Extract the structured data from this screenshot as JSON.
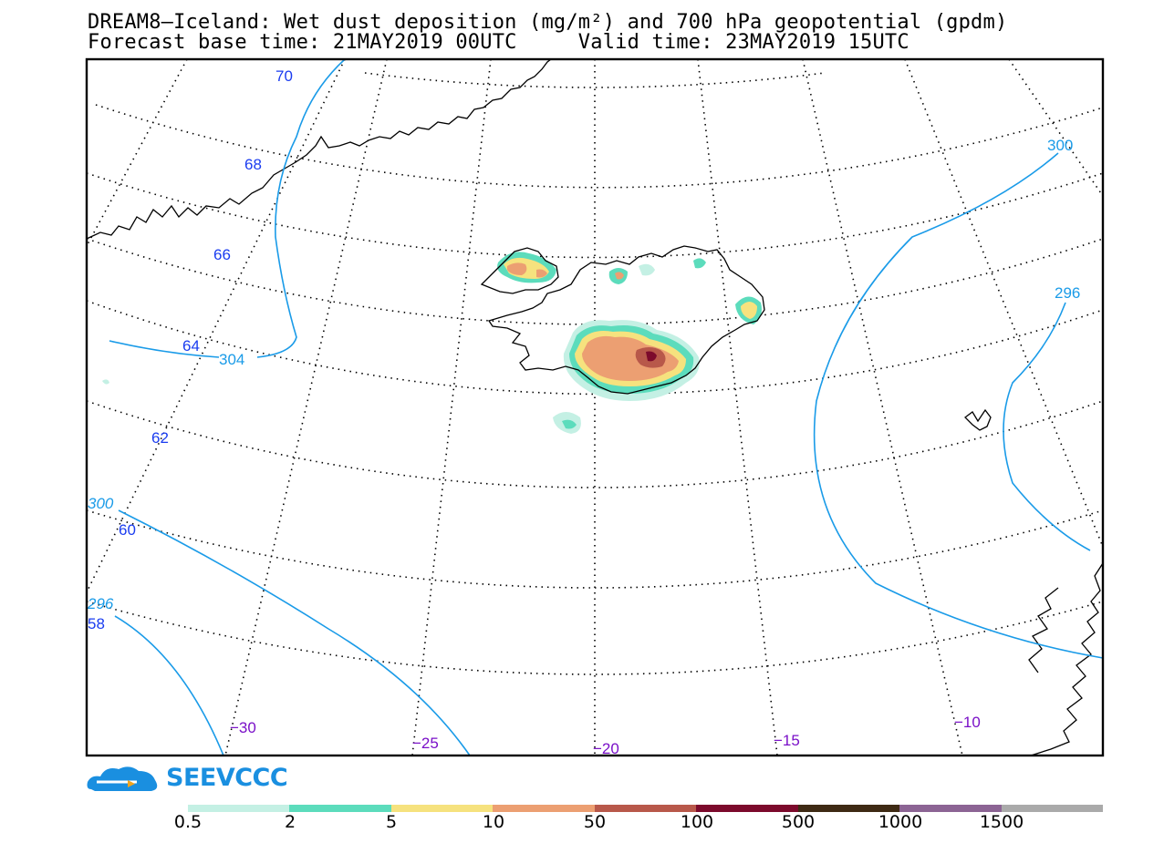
{
  "header": {
    "title_line1": "DREAM8—Iceland: Wet dust deposition (mg/m²) and 700 hPa geopotential (gpdm)",
    "title_line2": "Forecast base time: 21MAY2019 00UTC     Valid time: 23MAY2019 15UTC"
  },
  "map": {
    "latitude_labels": [
      "70",
      "68",
      "66",
      "64",
      "62",
      "60",
      "58"
    ],
    "longitude_labels": [
      "−30",
      "−25",
      "−20",
      "−15",
      "−10"
    ],
    "contour_labels": [
      "304",
      "300",
      "296",
      "300",
      "296"
    ],
    "colors": {
      "latlon_label": "#1a3cf0",
      "lon_label": "#7a10c8",
      "contour": "#1a9be8"
    }
  },
  "brand": {
    "name": "SEEVCCC",
    "color": "#1a8fe0",
    "icon": "cloud-logo-icon"
  },
  "legend": {
    "ticks": [
      "0.5",
      "2",
      "5",
      "10",
      "50",
      "100",
      "500",
      "1000",
      "1500"
    ],
    "colors": [
      "#c4f0e4",
      "#5cdcbc",
      "#f6e27e",
      "#ec9f72",
      "#b8584a",
      "#7c0a2c",
      "#3e2a14",
      "#8c6494",
      "#aaaaaa"
    ]
  }
}
